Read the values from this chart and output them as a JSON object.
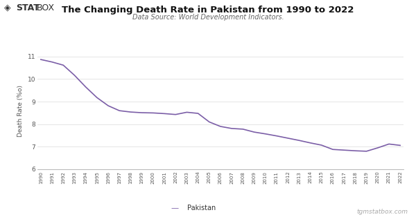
{
  "title": "The Changing Death Rate in Pakistan from 1990 to 2022",
  "subtitle": "Data Source: World Development Indicators.",
  "ylabel": "Death Rate (%o)",
  "legend_label": "Pakistan",
  "watermark": "tgmstatbox.com",
  "line_color": "#7b5ea7",
  "bg_color": "#ffffff",
  "grid_color": "#e0e0e0",
  "years": [
    1990,
    1991,
    1992,
    1993,
    1994,
    1995,
    1996,
    1997,
    1998,
    1999,
    2000,
    2001,
    2002,
    2003,
    2004,
    2005,
    2006,
    2007,
    2008,
    2009,
    2010,
    2011,
    2012,
    2013,
    2014,
    2015,
    2016,
    2017,
    2018,
    2019,
    2020,
    2021,
    2022
  ],
  "values": [
    10.87,
    10.76,
    10.62,
    10.17,
    9.65,
    9.18,
    8.82,
    8.6,
    8.54,
    8.51,
    8.5,
    8.47,
    8.43,
    8.53,
    8.48,
    8.1,
    7.9,
    7.81,
    7.78,
    7.65,
    7.57,
    7.48,
    7.38,
    7.28,
    7.17,
    7.07,
    6.88,
    6.85,
    6.82,
    6.8,
    6.95,
    7.12,
    7.06
  ],
  "ylim": [
    6,
    11.2
  ],
  "yticks": [
    6,
    7,
    8,
    9,
    10,
    11
  ],
  "title_fontsize": 9.5,
  "subtitle_fontsize": 7.0,
  "ylabel_fontsize": 6.5,
  "ytick_fontsize": 6.5,
  "xtick_fontsize": 5.0,
  "legend_fontsize": 7.0,
  "watermark_fontsize": 6.5
}
